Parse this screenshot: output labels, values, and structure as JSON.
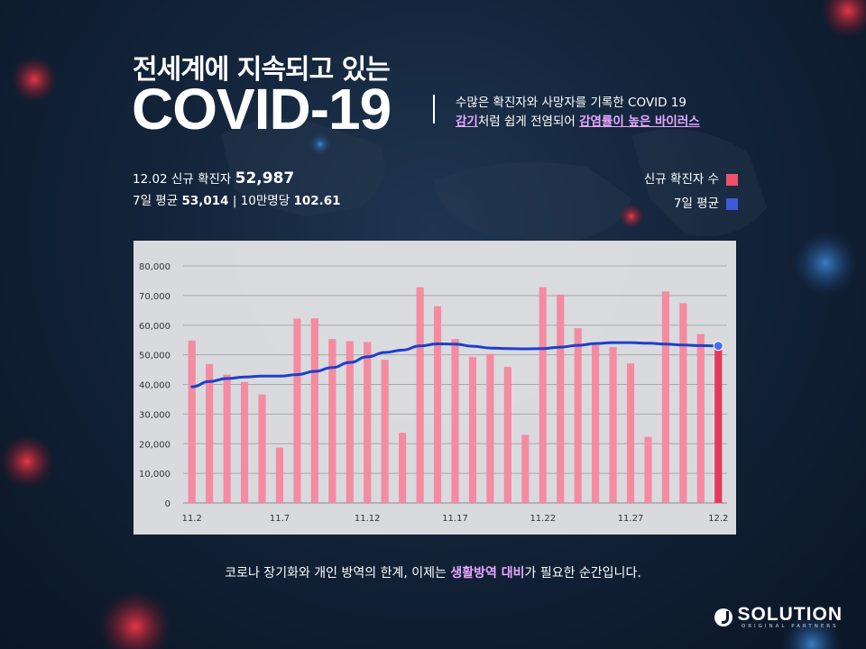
{
  "header": {
    "subtitle": "전세계에 지속되고 있는",
    "title": "COVID-19",
    "desc_line1": "수많은 확진자와 사망자를 기록한 COVID 19",
    "desc_line2_hl1": "감기",
    "desc_line2_mid": "처럼 쉽게 전염되어 ",
    "desc_line2_hl2": "감염률이 높은 바이러스"
  },
  "stats": {
    "date_label": "12.02 신규 확진자",
    "new_cases": "52,987",
    "avg_label": "7일 평균",
    "avg_value": "53,014",
    "sep": "|",
    "per100k_label": "10만명당",
    "per100k_value": "102.61"
  },
  "legend": {
    "new_cases": "신규 확진자 수",
    "avg": "7일 평균"
  },
  "colors": {
    "bar": "#f48ba0",
    "bar_last": "#e8375c",
    "line": "#1e3fc8",
    "new_cases_swatch": "#f0506f",
    "avg_swatch": "#3d5bd9",
    "highlight": "#e7a8ff"
  },
  "bottom": {
    "pre": "코로나 장기화와 개인 방역의 한계, 이제는 ",
    "hl": "생활방역 대비",
    "post": "가 필요한 순간입니다."
  },
  "logo": {
    "text": "SOLUTION",
    "sub": "ORIGINAL PARTNERS"
  },
  "chart_data": {
    "type": "bar",
    "title": "",
    "xlabel": "",
    "ylabel": "",
    "ylim": [
      0,
      80000
    ],
    "yticks": [
      0,
      10000,
      20000,
      30000,
      40000,
      50000,
      60000,
      70000,
      80000
    ],
    "ytick_labels": [
      "0",
      "10,000",
      "20,000",
      "30,000",
      "40,000",
      "50,000",
      "60,000",
      "70,000",
      "80,000"
    ],
    "categories": [
      "11.2",
      "11.3",
      "11.4",
      "11.5",
      "11.6",
      "11.7",
      "11.8",
      "11.9",
      "11.10",
      "11.11",
      "11.12",
      "11.13",
      "11.14",
      "11.15",
      "11.16",
      "11.17",
      "11.18",
      "11.19",
      "11.20",
      "11.21",
      "11.22",
      "11.23",
      "11.24",
      "11.25",
      "11.26",
      "11.27",
      "11.28",
      "11.29",
      "11.30",
      "12.1",
      "12.2"
    ],
    "xtick_labels": [
      {
        "i": 0,
        "text": "11.2"
      },
      {
        "i": 5,
        "text": "11.7"
      },
      {
        "i": 10,
        "text": "11.12"
      },
      {
        "i": 15,
        "text": "11.17"
      },
      {
        "i": 20,
        "text": "11.22"
      },
      {
        "i": 25,
        "text": "11.27"
      },
      {
        "i": 30,
        "text": "12.2"
      }
    ],
    "grid": true,
    "legend_position": "top-right",
    "series": [
      {
        "name": "신규 확진자 수",
        "type": "bar",
        "values": [
          54800,
          46900,
          43300,
          40800,
          36600,
          18700,
          62200,
          62300,
          55300,
          54600,
          54300,
          48300,
          23700,
          72800,
          66400,
          55300,
          49300,
          50300,
          45900,
          23000,
          72800,
          70300,
          59000,
          53300,
          52600,
          47100,
          22300,
          71400,
          67400,
          57000,
          52987
        ]
      },
      {
        "name": "7일 평균",
        "type": "line",
        "values": [
          39200,
          41000,
          42000,
          42500,
          42800,
          42800,
          43300,
          44400,
          45700,
          47400,
          49300,
          50800,
          51600,
          53000,
          53700,
          53600,
          52900,
          52300,
          52100,
          52000,
          52100,
          52600,
          53200,
          53800,
          54100,
          54100,
          53900,
          53600,
          53300,
          53100,
          53014
        ]
      }
    ]
  }
}
